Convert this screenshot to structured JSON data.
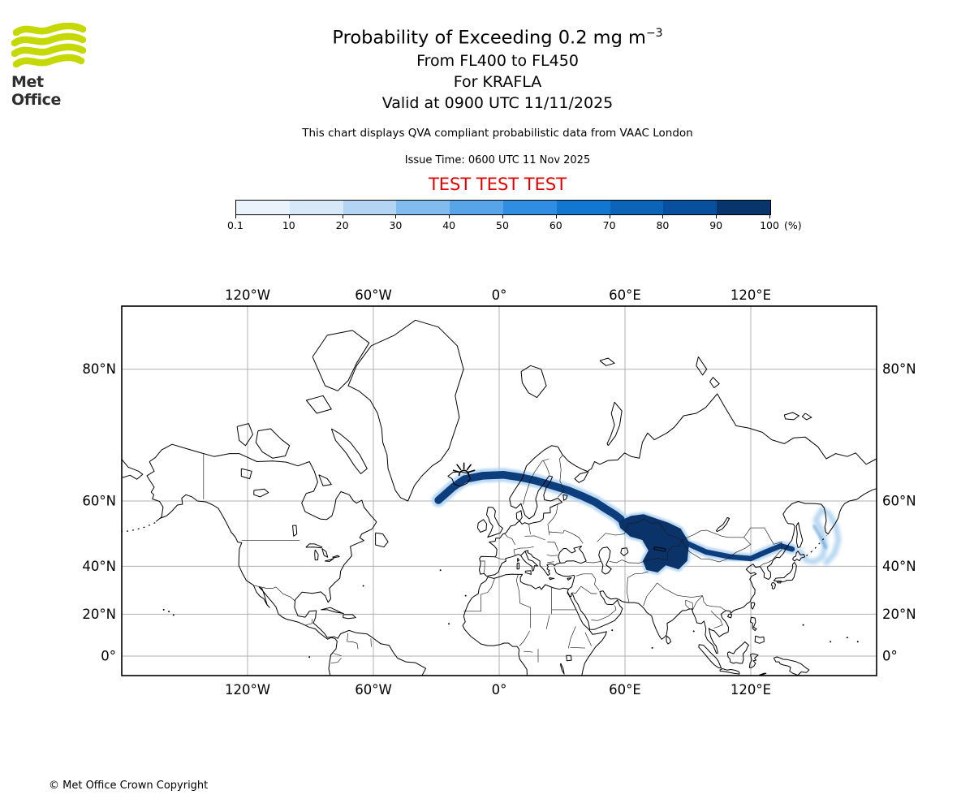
{
  "brand": {
    "name": "Met Office"
  },
  "header": {
    "title_main": "Probability of Exceeding 0.2 mg m",
    "title_sup": "−3",
    "subtitle_lines": [
      "From FL400 to FL450",
      "For KRAFLA",
      "Valid at 0900 UTC 11/11/2025"
    ],
    "description": "This chart displays QVA compliant probabilistic data from VAAC London",
    "issue_time": "Issue Time: 0600 UTC 11 Nov 2025",
    "test_banner": "TEST TEST TEST",
    "test_color": "#dd0000"
  },
  "colorbar": {
    "tick_labels": [
      "0.1",
      "10",
      "20",
      "30",
      "40",
      "50",
      "60",
      "70",
      "80",
      "90",
      "100"
    ],
    "unit": "(%)",
    "segment_colors": [
      "#eaf3fb",
      "#d7e8f8",
      "#b3d4f3",
      "#82bbee",
      "#57a4e9",
      "#2f8ee2",
      "#1277d1",
      "#0b64b8",
      "#08509e",
      "#09356d"
    ]
  },
  "map": {
    "top_labels": [
      "120°W",
      "60°W",
      "0°",
      "60°E",
      "120°E"
    ],
    "bottom_labels": [
      "120°W",
      "60°W",
      "0°",
      "60°E",
      "120°E"
    ],
    "left_labels": [
      "80°N",
      "60°N",
      "40°N",
      "20°N",
      "0°"
    ],
    "right_labels": [
      "80°N",
      "60°N",
      "40°N",
      "20°N",
      "0°"
    ],
    "grid_lons": [
      -120,
      -60,
      0,
      60,
      120
    ],
    "grid_lats": [
      80,
      60,
      40,
      20,
      0
    ],
    "grid_color": "#b0b0b0",
    "coast_color": "#000000"
  },
  "chart_data": {
    "type": "map",
    "title": "Probability of Exceeding 0.2 mg m−3",
    "projection": "mercator",
    "lon_range": [
      -180,
      180
    ],
    "lat_range": [
      -9.5,
      84.1
    ],
    "colorbar_bounds_pct": [
      0.1,
      10,
      20,
      30,
      40,
      50,
      60,
      70,
      80,
      90,
      100
    ],
    "volcano": {
      "name": "KRAFLA",
      "lon": -16.8,
      "lat": 65.7
    },
    "plume": {
      "core_color": "#0c3d7c",
      "blob_color": "#0a3369",
      "fringe_color": "#aed2f0",
      "hook_color": "#7fb7e4",
      "west_band": [
        [
          -29,
          60.2
        ],
        [
          -22,
          63.2
        ],
        [
          -16.6,
          64.9
        ],
        [
          -8,
          65.6
        ],
        [
          1.9,
          65.8
        ],
        [
          10,
          65.3
        ],
        [
          17.4,
          64.6
        ],
        [
          25,
          63.6
        ],
        [
          32.9,
          62.5
        ],
        [
          40,
          61.1
        ],
        [
          46,
          59.7
        ],
        [
          50.3,
          58.2
        ],
        [
          55,
          56.6
        ],
        [
          58,
          55.3
        ]
      ],
      "core_region": [
        [
          57.3,
          54.5
        ],
        [
          63.1,
          56.0
        ],
        [
          68.9,
          56.4
        ],
        [
          75.5,
          55.1
        ],
        [
          80.9,
          54.0
        ],
        [
          86.3,
          52.4
        ],
        [
          90.2,
          48.3
        ],
        [
          89.4,
          42.2
        ],
        [
          85.5,
          39.2
        ],
        [
          79.4,
          40.7
        ],
        [
          75.5,
          38.0
        ],
        [
          70.5,
          38.9
        ],
        [
          68.9,
          41.9
        ],
        [
          71.6,
          45.6
        ],
        [
          68.5,
          49.3
        ],
        [
          62.7,
          50.4
        ],
        [
          58.1,
          52.9
        ],
        [
          57.3,
          54.5
        ]
      ],
      "east_band": [
        [
          90.2,
          47.8
        ],
        [
          98.7,
          45.1
        ],
        [
          110.3,
          43.4
        ],
        [
          120,
          42.8
        ],
        [
          127.7,
          45.3
        ],
        [
          134.3,
          47.2
        ],
        [
          139.7,
          46.1
        ]
      ],
      "far_east_hook": [
        [
          143.2,
          45.6
        ],
        [
          146.3,
          42.2
        ],
        [
          150.2,
          41.6
        ],
        [
          154.1,
          43.4
        ],
        [
          155.6,
          47.2
        ],
        [
          154.1,
          51.6
        ],
        [
          151,
          55.1
        ],
        [
          154.1,
          58.0
        ],
        [
          157.5,
          56.7
        ],
        [
          160.6,
          53.3
        ],
        [
          161.8,
          49.1
        ],
        [
          159.9,
          44.6
        ],
        [
          156,
          41.3
        ]
      ],
      "hook_inner_streak": [
        [
          150.2,
          53.3
        ],
        [
          152.9,
          50.4
        ],
        [
          155.6,
          46.7
        ]
      ]
    }
  },
  "footer": {
    "copyright": "© Met Office Crown Copyright"
  }
}
